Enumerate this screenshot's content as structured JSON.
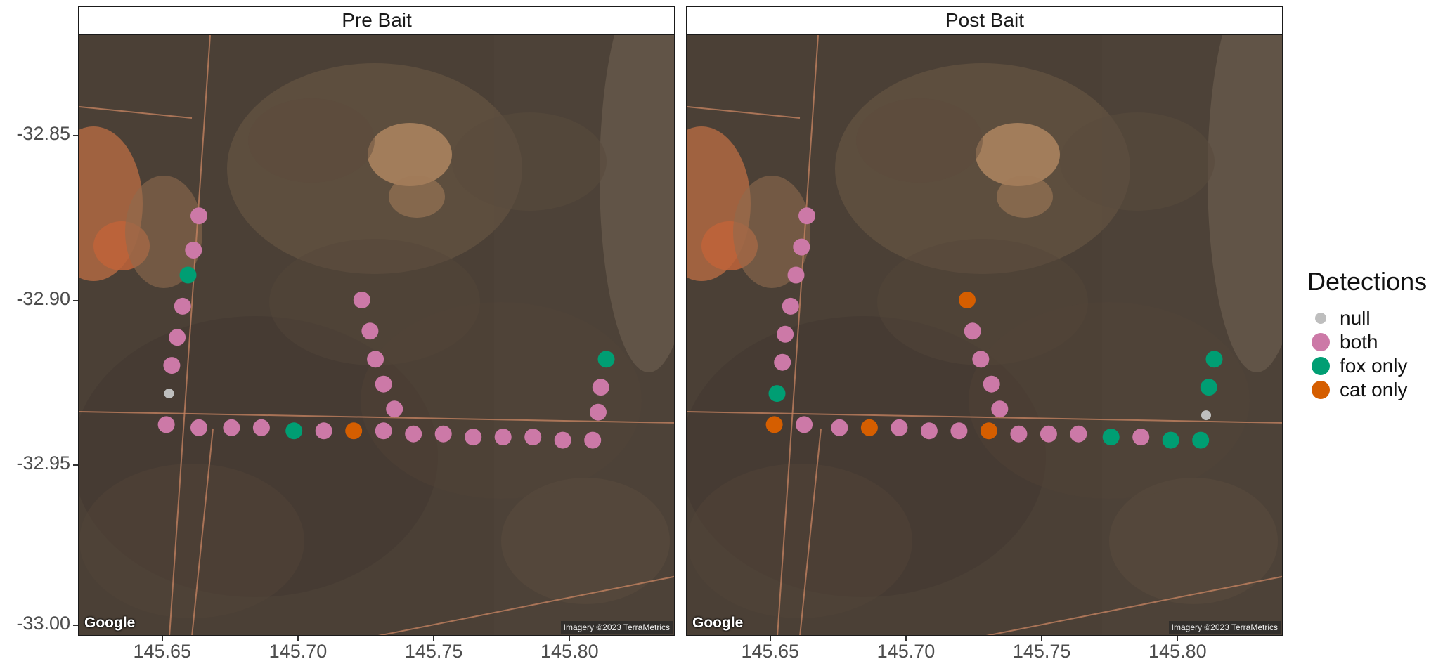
{
  "panels": [
    {
      "title": "Pre Bait",
      "points": [
        {
          "lon": 145.663,
          "lat": -32.869,
          "cls": "both"
        },
        {
          "lon": 145.661,
          "lat": -32.88,
          "cls": "both"
        },
        {
          "lon": 145.659,
          "lat": -32.888,
          "cls": "fox only"
        },
        {
          "lon": 145.657,
          "lat": -32.898,
          "cls": "both"
        },
        {
          "lon": 145.655,
          "lat": -32.908,
          "cls": "both"
        },
        {
          "lon": 145.653,
          "lat": -32.917,
          "cls": "both"
        },
        {
          "lon": 145.652,
          "lat": -32.926,
          "cls": "null"
        },
        {
          "lon": 145.651,
          "lat": -32.936,
          "cls": "both"
        },
        {
          "lon": 145.663,
          "lat": -32.937,
          "cls": "both"
        },
        {
          "lon": 145.675,
          "lat": -32.937,
          "cls": "both"
        },
        {
          "lon": 145.686,
          "lat": -32.937,
          "cls": "both"
        },
        {
          "lon": 145.698,
          "lat": -32.938,
          "cls": "fox only"
        },
        {
          "lon": 145.709,
          "lat": -32.938,
          "cls": "both"
        },
        {
          "lon": 145.72,
          "lat": -32.938,
          "cls": "cat only"
        },
        {
          "lon": 145.731,
          "lat": -32.938,
          "cls": "both"
        },
        {
          "lon": 145.742,
          "lat": -32.939,
          "cls": "both"
        },
        {
          "lon": 145.753,
          "lat": -32.939,
          "cls": "both"
        },
        {
          "lon": 145.764,
          "lat": -32.94,
          "cls": "both"
        },
        {
          "lon": 145.775,
          "lat": -32.94,
          "cls": "both"
        },
        {
          "lon": 145.786,
          "lat": -32.94,
          "cls": "both"
        },
        {
          "lon": 145.797,
          "lat": -32.941,
          "cls": "both"
        },
        {
          "lon": 145.808,
          "lat": -32.941,
          "cls": "both"
        },
        {
          "lon": 145.81,
          "lat": -32.932,
          "cls": "both"
        },
        {
          "lon": 145.811,
          "lat": -32.924,
          "cls": "both"
        },
        {
          "lon": 145.813,
          "lat": -32.915,
          "cls": "fox only"
        },
        {
          "lon": 145.723,
          "lat": -32.896,
          "cls": "both"
        },
        {
          "lon": 145.726,
          "lat": -32.906,
          "cls": "both"
        },
        {
          "lon": 145.728,
          "lat": -32.915,
          "cls": "both"
        },
        {
          "lon": 145.731,
          "lat": -32.923,
          "cls": "both"
        },
        {
          "lon": 145.735,
          "lat": -32.931,
          "cls": "both"
        }
      ]
    },
    {
      "title": "Post Bait",
      "points": [
        {
          "lon": 145.663,
          "lat": -32.869,
          "cls": "both"
        },
        {
          "lon": 145.661,
          "lat": -32.879,
          "cls": "both"
        },
        {
          "lon": 145.659,
          "lat": -32.888,
          "cls": "both"
        },
        {
          "lon": 145.657,
          "lat": -32.898,
          "cls": "both"
        },
        {
          "lon": 145.655,
          "lat": -32.907,
          "cls": "both"
        },
        {
          "lon": 145.654,
          "lat": -32.916,
          "cls": "both"
        },
        {
          "lon": 145.652,
          "lat": -32.926,
          "cls": "fox only"
        },
        {
          "lon": 145.651,
          "lat": -32.936,
          "cls": "cat only"
        },
        {
          "lon": 145.662,
          "lat": -32.936,
          "cls": "both"
        },
        {
          "lon": 145.675,
          "lat": -32.937,
          "cls": "both"
        },
        {
          "lon": 145.686,
          "lat": -32.937,
          "cls": "cat only"
        },
        {
          "lon": 145.697,
          "lat": -32.937,
          "cls": "both"
        },
        {
          "lon": 145.708,
          "lat": -32.938,
          "cls": "both"
        },
        {
          "lon": 145.719,
          "lat": -32.938,
          "cls": "both"
        },
        {
          "lon": 145.73,
          "lat": -32.938,
          "cls": "cat only"
        },
        {
          "lon": 145.741,
          "lat": -32.939,
          "cls": "both"
        },
        {
          "lon": 145.752,
          "lat": -32.939,
          "cls": "both"
        },
        {
          "lon": 145.763,
          "lat": -32.939,
          "cls": "both"
        },
        {
          "lon": 145.775,
          "lat": -32.94,
          "cls": "fox only"
        },
        {
          "lon": 145.786,
          "lat": -32.94,
          "cls": "both"
        },
        {
          "lon": 145.797,
          "lat": -32.941,
          "cls": "fox only"
        },
        {
          "lon": 145.808,
          "lat": -32.941,
          "cls": "fox only"
        },
        {
          "lon": 145.81,
          "lat": -32.933,
          "cls": "null"
        },
        {
          "lon": 145.811,
          "lat": -32.924,
          "cls": "fox only"
        },
        {
          "lon": 145.813,
          "lat": -32.915,
          "cls": "fox only"
        },
        {
          "lon": 145.722,
          "lat": -32.896,
          "cls": "cat only"
        },
        {
          "lon": 145.724,
          "lat": -32.906,
          "cls": "both"
        },
        {
          "lon": 145.727,
          "lat": -32.915,
          "cls": "both"
        },
        {
          "lon": 145.731,
          "lat": -32.923,
          "cls": "both"
        },
        {
          "lon": 145.734,
          "lat": -32.931,
          "cls": "both"
        }
      ]
    }
  ],
  "axes": {
    "x_ticks": [
      "145.65",
      "145.70",
      "145.75",
      "145.80"
    ],
    "y_ticks": [
      "-32.85",
      "-32.90",
      "-32.95",
      "-33.00"
    ],
    "xlim": [
      145.619,
      145.839
    ],
    "ylim": [
      -33.004,
      -32.811
    ]
  },
  "legend": {
    "title": "Detections",
    "items": [
      {
        "label": "null",
        "color": "#bebebe"
      },
      {
        "label": "both",
        "color": "#cc79a7"
      },
      {
        "label": "fox only",
        "color": "#009e73"
      },
      {
        "label": "cat only",
        "color": "#d55e00"
      }
    ]
  },
  "map_text": {
    "logo": "Google",
    "attribution": "Imagery ©2023 TerraMetrics"
  }
}
